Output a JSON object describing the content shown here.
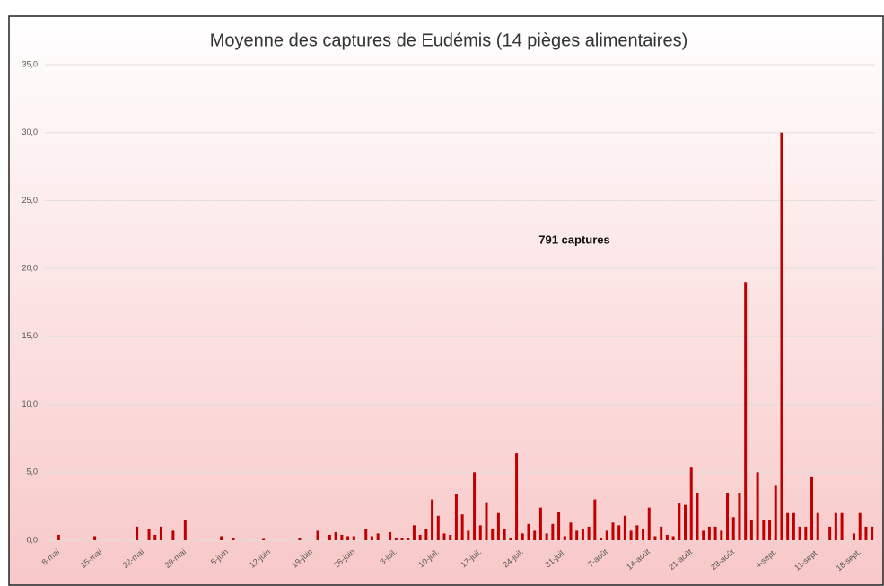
{
  "chart_data": {
    "type": "bar",
    "title": "Moyenne des captures de Eudémis (14 pièges alimentaires)",
    "annotation": "791 captures",
    "color": "#c00000",
    "categories": [
      "8-mai",
      null,
      null,
      null,
      null,
      null,
      null,
      "15-mai",
      null,
      null,
      null,
      null,
      null,
      null,
      "22-mai",
      null,
      null,
      null,
      null,
      null,
      null,
      "29-mai",
      null,
      null,
      null,
      null,
      null,
      null,
      "5-juin",
      null,
      null,
      null,
      null,
      null,
      null,
      "12-juin",
      null,
      null,
      null,
      null,
      null,
      null,
      "19-juin",
      null,
      null,
      null,
      null,
      null,
      null,
      "26-juin",
      null,
      null,
      null,
      null,
      null,
      null,
      "3-juil.",
      null,
      null,
      null,
      null,
      null,
      null,
      "10-juil.",
      null,
      null,
      null,
      null,
      null,
      null,
      "17-juil.",
      null,
      null,
      null,
      null,
      null,
      null,
      "24-juil.",
      null,
      null,
      null,
      null,
      null,
      null,
      "31-juil.",
      null,
      null,
      null,
      null,
      null,
      null,
      "7-août",
      null,
      null,
      null,
      null,
      null,
      null,
      "14-août",
      null,
      null,
      null,
      null,
      null,
      null,
      "21-août",
      null,
      null,
      null,
      null,
      null,
      null,
      "28-août",
      null,
      null,
      null,
      null,
      null,
      null,
      "4-sept.",
      null,
      null,
      null,
      null,
      null,
      null,
      "11-sept.",
      null,
      null,
      null,
      null,
      null,
      null,
      "18-sept.",
      null,
      null
    ],
    "values": [
      0.4,
      0,
      0,
      0,
      0,
      0,
      0.3,
      0,
      0,
      0,
      0,
      0,
      0,
      1.0,
      0,
      0.8,
      0.4,
      1.0,
      0,
      0.7,
      0,
      1.5,
      0,
      0,
      0,
      0,
      0,
      0.3,
      0,
      0.2,
      0,
      0,
      0,
      0,
      0.1,
      0,
      0,
      0,
      0,
      0,
      0.2,
      0,
      0,
      0.7,
      0,
      0.4,
      0.6,
      0.4,
      0.3,
      0.3,
      0,
      0.8,
      0.3,
      0.5,
      0,
      0.6,
      0.2,
      0.2,
      0.2,
      1.1,
      0.4,
      0.8,
      3.0,
      1.8,
      0.5,
      0.4,
      3.4,
      1.9,
      0.7,
      5.0,
      1.1,
      2.8,
      0.8,
      2.0,
      0.8,
      0.2,
      6.4,
      0.5,
      1.2,
      0.7,
      2.4,
      0.5,
      1.2,
      2.1,
      0.3,
      1.3,
      0.7,
      0.8,
      1.0,
      3.0,
      0.2,
      0.7,
      1.3,
      1.1,
      1.8,
      0.7,
      1.1,
      0.8,
      2.4,
      0.3,
      1.0,
      0.4,
      0.3,
      2.7,
      2.6,
      5.4,
      3.5,
      0.7,
      1.0,
      1.0,
      0.7,
      3.5,
      1.7,
      3.5,
      19.0,
      1.5,
      5.0,
      1.5,
      1.5,
      4.0,
      30.0,
      2.0,
      2.0,
      1.0,
      1.0,
      4.7,
      2.0,
      0,
      1.0,
      2.0,
      2.0,
      0,
      0.5,
      2.0,
      1.0,
      1.0
    ],
    "ylim": [
      0,
      35
    ],
    "yticks": [
      {
        "value": 0,
        "label": "0,0"
      },
      {
        "value": 5,
        "label": "5,0"
      },
      {
        "value": 10,
        "label": "10,0"
      },
      {
        "value": 15,
        "label": "15,0"
      },
      {
        "value": 20,
        "label": "20,0"
      },
      {
        "value": 25,
        "label": "25,0"
      },
      {
        "value": 30,
        "label": "30,0"
      },
      {
        "value": 35,
        "label": "35,0"
      }
    ],
    "grid": true
  }
}
